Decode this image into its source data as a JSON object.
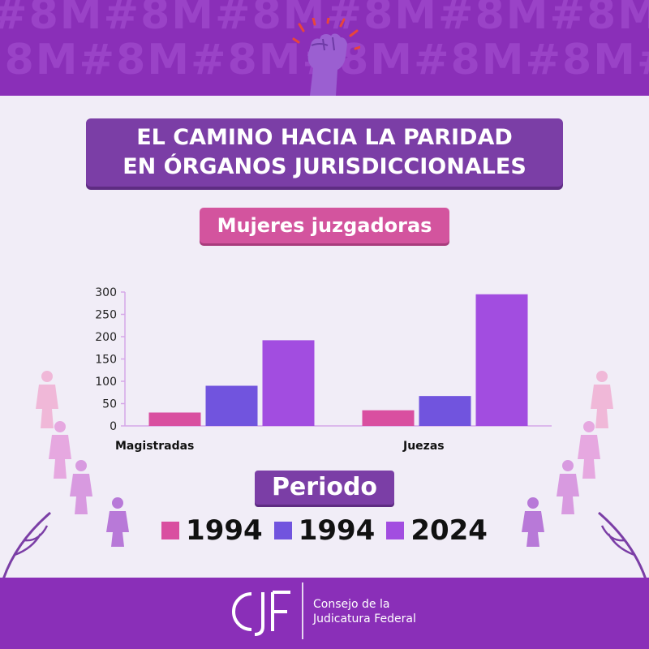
{
  "header": {
    "pattern_text": "#8M#8M#8M#8M#8M#8M#8M#8M",
    "title_line1": "EL CAMINO HACIA LA PARIDAD",
    "title_line2": "EN ÓRGANOS JURISDICCIONALES",
    "subtitle": "Mujeres juzgadoras"
  },
  "chart_data": {
    "type": "bar",
    "categories": [
      "Magistradas",
      "Juezas"
    ],
    "series": [
      {
        "name": "1994",
        "color": "#d94fa0",
        "values": [
          30,
          35
        ]
      },
      {
        "name": "1994",
        "color": "#7154de",
        "values": [
          90,
          67
        ]
      },
      {
        "name": "2024",
        "color": "#a24de0",
        "values": [
          192,
          295
        ]
      }
    ],
    "ylim": [
      0,
      300
    ],
    "yticks": [
      0,
      50,
      100,
      150,
      200,
      250,
      300
    ],
    "legend_title": "Periodo",
    "grid": false,
    "legend_position": "bottom"
  },
  "footer": {
    "logo_text": "CJF",
    "org_line1": "Consejo de la",
    "org_line2": "Judicatura Federal"
  },
  "colors": {
    "band": "#8a2fb8",
    "title_box": "#7b3ea6",
    "subtitle_box": "#d3549e",
    "background": "#f1edf7"
  }
}
